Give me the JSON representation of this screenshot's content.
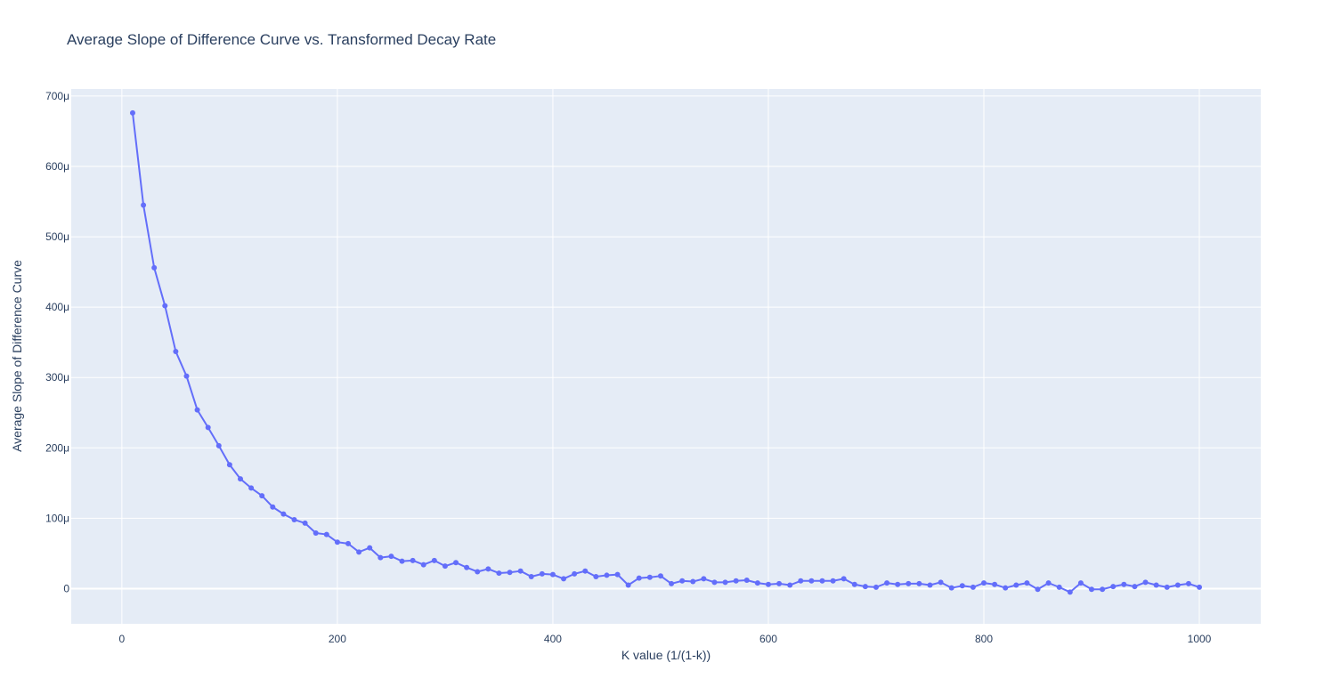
{
  "chart_data": {
    "type": "line",
    "title": "Average Slope of Difference Curve vs. Transformed Decay Rate",
    "xlabel": "K value (1/(1-k))",
    "ylabel": "Average Slope of Difference Curve",
    "xlim": [
      -47,
      1057
    ],
    "ylim": [
      -5e-05,
      0.00071
    ],
    "x_ticks": [
      0,
      200,
      400,
      600,
      800,
      1000
    ],
    "x_tick_labels": [
      "0",
      "200",
      "400",
      "600",
      "800",
      "1000"
    ],
    "y_ticks": [
      0,
      0.0001,
      0.0002,
      0.0003,
      0.0004,
      0.0005,
      0.0006,
      0.0007
    ],
    "y_tick_labels": [
      "0",
      "100μ",
      "200μ",
      "300μ",
      "400μ",
      "500μ",
      "600μ",
      "700μ"
    ],
    "grid": true,
    "legend": false,
    "series": [
      {
        "color": "#636efa",
        "mode": "lines+markers",
        "x": [
          10,
          20,
          30,
          40,
          50,
          60,
          70,
          80,
          90,
          100,
          110,
          120,
          130,
          140,
          150,
          160,
          170,
          180,
          190,
          200,
          210,
          220,
          230,
          240,
          250,
          260,
          270,
          280,
          290,
          300,
          310,
          320,
          330,
          340,
          350,
          360,
          370,
          380,
          390,
          400,
          410,
          420,
          430,
          440,
          450,
          460,
          470,
          480,
          490,
          500,
          510,
          520,
          530,
          540,
          550,
          560,
          570,
          580,
          590,
          600,
          610,
          620,
          630,
          640,
          650,
          660,
          670,
          680,
          690,
          700,
          710,
          720,
          730,
          740,
          750,
          760,
          770,
          780,
          790,
          800,
          810,
          820,
          830,
          840,
          850,
          860,
          870,
          880,
          890,
          900,
          910,
          920,
          930,
          940,
          950,
          960,
          970,
          980,
          990,
          1000
        ],
        "y": [
          0.000676,
          0.000545,
          0.000456,
          0.000402,
          0.000337,
          0.000302,
          0.000254,
          0.000229,
          0.000203,
          0.000176,
          0.000156,
          0.000143,
          0.000132,
          0.000116,
          0.000106,
          9.8e-05,
          9.3e-05,
          7.9e-05,
          7.7e-05,
          6.6e-05,
          6.4e-05,
          5.2e-05,
          5.8e-05,
          4.4e-05,
          4.6e-05,
          3.9e-05,
          4e-05,
          3.4e-05,
          4e-05,
          3.2e-05,
          3.7e-05,
          3e-05,
          2.4e-05,
          2.8e-05,
          2.2e-05,
          2.3e-05,
          2.5e-05,
          1.7e-05,
          2.1e-05,
          2e-05,
          1.4e-05,
          2.1e-05,
          2.5e-05,
          1.7e-05,
          1.9e-05,
          2e-05,
          5e-06,
          1.5e-05,
          1.6e-05,
          1.8e-05,
          7e-06,
          1.1e-05,
          1e-05,
          1.4e-05,
          9e-06,
          9e-06,
          1.1e-05,
          1.2e-05,
          8e-06,
          6e-06,
          7e-06,
          5e-06,
          1.1e-05,
          1.1e-05,
          1.1e-05,
          1.1e-05,
          1.4e-05,
          6e-06,
          3e-06,
          2e-06,
          8e-06,
          6e-06,
          7e-06,
          7e-06,
          5e-06,
          9e-06,
          1e-06,
          4e-06,
          2e-06,
          8e-06,
          6e-06,
          1e-06,
          5e-06,
          8e-06,
          -1e-06,
          8e-06,
          2e-06,
          -5e-06,
          8e-06,
          -1e-06,
          -1e-06,
          3e-06,
          6e-06,
          3e-06,
          9e-06,
          5e-06,
          2e-06,
          5e-06,
          7e-06,
          2e-06
        ]
      }
    ]
  }
}
